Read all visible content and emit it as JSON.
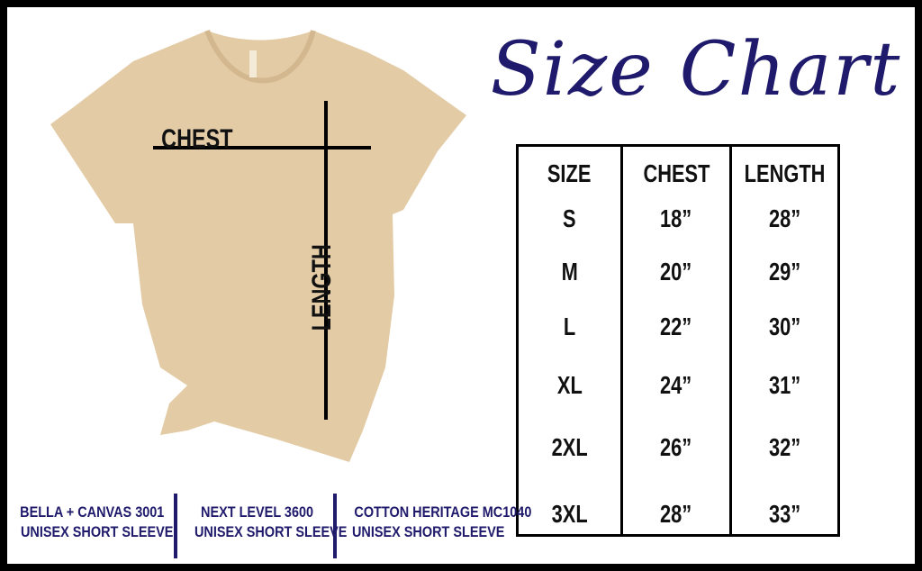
{
  "title": "Size Chart",
  "colors": {
    "accent": "#1f1a6b",
    "shirt": "#e3cba6",
    "border": "#000000"
  },
  "shirt": {
    "chest_label": "CHEST",
    "length_label": "LENGTH"
  },
  "table": {
    "headers": [
      "SIZE",
      "CHEST",
      "LENGTH"
    ],
    "rows": [
      [
        "S",
        "18”",
        "28”"
      ],
      [
        "M",
        "20”",
        "29”"
      ],
      [
        "L",
        "22”",
        "30”"
      ],
      [
        "XL",
        "24”",
        "31”"
      ],
      [
        "2XL",
        "26”",
        "32”"
      ],
      [
        "3XL",
        "28”",
        "33”"
      ]
    ]
  },
  "brands": [
    {
      "line1": "BELLA + CANVAS 3001",
      "line2": "UNISEX SHORT SLEEVE"
    },
    {
      "line1": "NEXT LEVEL 3600",
      "line2": "UNISEX SHORT SLEEVE"
    },
    {
      "line1": "COTTON HERITAGE MC1040",
      "line2": "UNISEX SHORT SLEEVE"
    }
  ]
}
